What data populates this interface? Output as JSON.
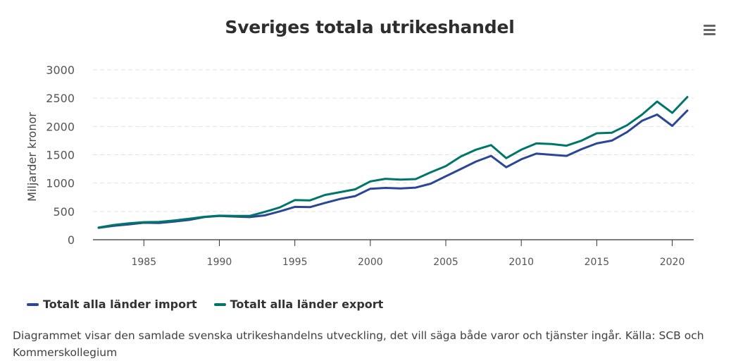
{
  "icons": {
    "menu": "hamburger-menu-icon"
  },
  "colors": {
    "import": "#2b4597",
    "export": "#00766b",
    "axis": "#333333",
    "grid": "#e2e2e2",
    "tick_text": "#555555"
  },
  "legend": {
    "import_label": "Totalt alla länder import",
    "export_label": "Totalt alla länder export"
  },
  "caption": "Diagrammet visar den samlade svenska utrikeshandelns utveckling, det vill säga både varor och tjänster ingår. Källa: SCB och Kommerskollegium",
  "chart_data": {
    "type": "line",
    "title": "Sveriges totala utrikeshandel",
    "xlabel": "",
    "ylabel": "Miljarder kronor",
    "xlim": [
      1982,
      2021
    ],
    "ylim": [
      0,
      3000
    ],
    "x_ticks": [
      1985,
      1990,
      1995,
      2000,
      2005,
      2010,
      2015,
      2020
    ],
    "y_ticks": [
      0,
      500,
      1000,
      1500,
      2000,
      2500,
      3000
    ],
    "grid": true,
    "legend_position": "bottom-left",
    "x": [
      1982,
      1983,
      1984,
      1985,
      1986,
      1987,
      1988,
      1989,
      1990,
      1991,
      1992,
      1993,
      1994,
      1995,
      1996,
      1997,
      1998,
      1999,
      2000,
      2001,
      2002,
      2003,
      2004,
      2005,
      2006,
      2007,
      2008,
      2009,
      2010,
      2011,
      2012,
      2013,
      2014,
      2015,
      2016,
      2017,
      2018,
      2019,
      2020,
      2021
    ],
    "series": [
      {
        "name": "Totalt alla länder import",
        "key": "import",
        "values": [
          210,
          245,
          270,
          300,
          295,
          320,
          350,
          400,
          420,
          410,
          400,
          430,
          500,
          580,
          575,
          650,
          720,
          770,
          900,
          915,
          905,
          920,
          990,
          1120,
          1250,
          1380,
          1480,
          1280,
          1420,
          1520,
          1500,
          1480,
          1600,
          1700,
          1750,
          1900,
          2100,
          2210,
          2010,
          2280
        ]
      },
      {
        "name": "Totalt alla länder export",
        "key": "export",
        "values": [
          215,
          260,
          290,
          310,
          315,
          340,
          370,
          405,
          425,
          420,
          420,
          490,
          570,
          700,
          695,
          790,
          840,
          890,
          1030,
          1075,
          1060,
          1070,
          1190,
          1300,
          1470,
          1590,
          1670,
          1440,
          1590,
          1700,
          1690,
          1660,
          1750,
          1880,
          1890,
          2020,
          2210,
          2440,
          2240,
          2520
        ]
      }
    ]
  }
}
